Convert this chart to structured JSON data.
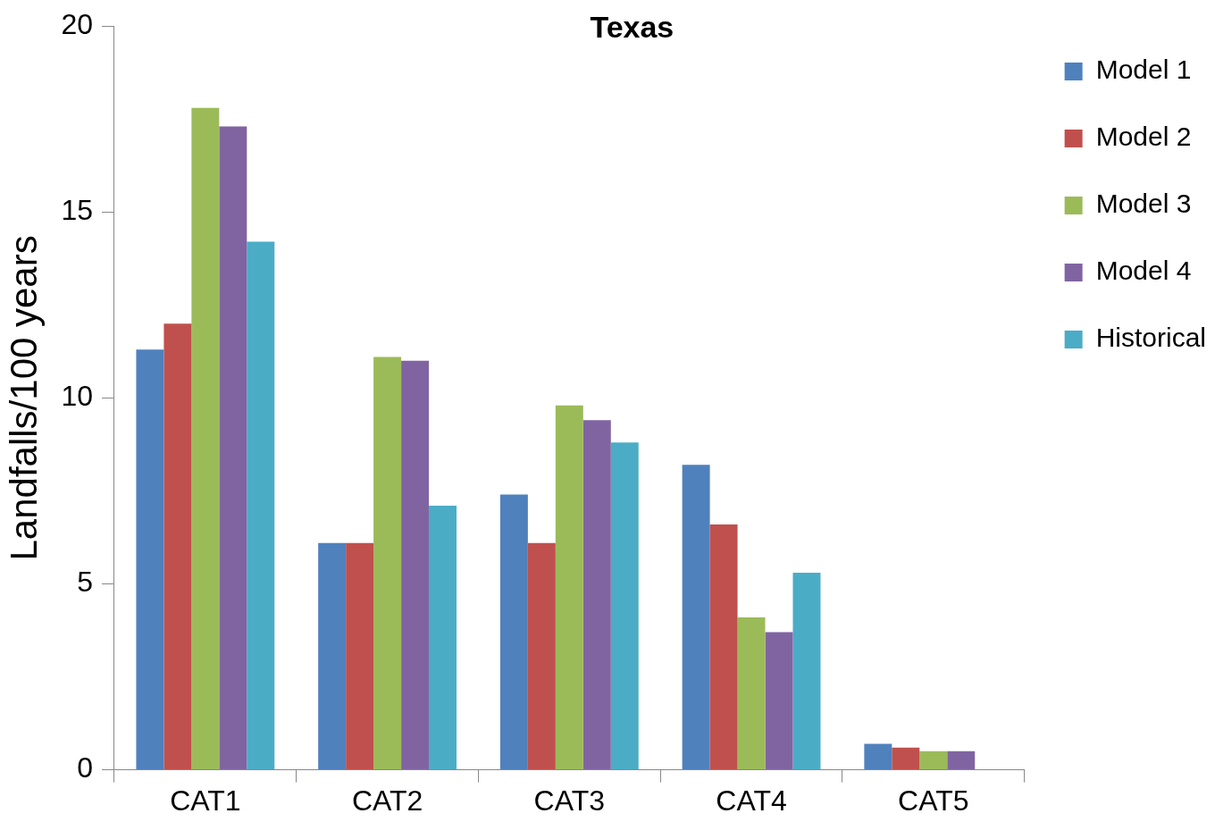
{
  "chart_data": {
    "type": "bar",
    "title": "Texas",
    "ylabel": "Landfalls/100 years",
    "categories": [
      "CAT1",
      "CAT2",
      "CAT3",
      "CAT4",
      "CAT5"
    ],
    "series": [
      {
        "name": "Model 1",
        "color": "#4f81bd",
        "values": [
          11.3,
          6.1,
          7.4,
          8.2,
          0.7
        ]
      },
      {
        "name": "Model 2",
        "color": "#c0504d",
        "values": [
          12.0,
          6.1,
          6.1,
          6.6,
          0.6
        ]
      },
      {
        "name": "Model 3",
        "color": "#9bbb59",
        "values": [
          17.8,
          11.1,
          9.8,
          4.1,
          0.5
        ]
      },
      {
        "name": "Model 4",
        "color": "#8064a2",
        "values": [
          17.3,
          11.0,
          9.4,
          3.7,
          0.5
        ]
      },
      {
        "name": "Historical",
        "color": "#4bacc6",
        "values": [
          14.2,
          7.1,
          8.8,
          5.3,
          null
        ]
      }
    ],
    "ylim": [
      0,
      20
    ],
    "yticks": [
      0,
      5,
      10,
      15,
      20
    ],
    "grid": false,
    "legend": "right"
  }
}
